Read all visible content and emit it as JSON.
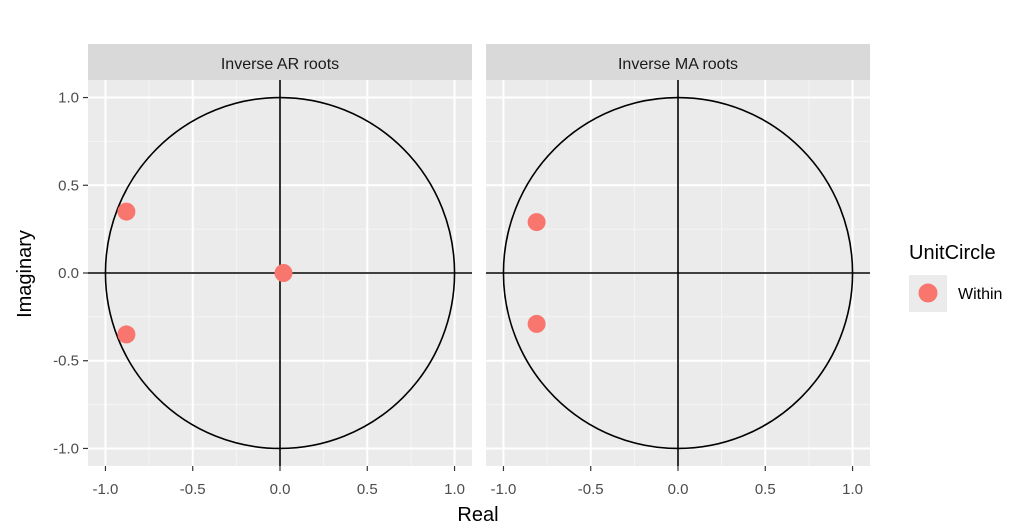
{
  "chart_data": {
    "type": "scatter",
    "xlabel": "Real",
    "ylabel": "Imaginary",
    "xlim": [
      -1.1,
      1.1
    ],
    "ylim": [
      -1.1,
      1.1
    ],
    "ticks": [
      -1.0,
      -0.5,
      0.0,
      0.5,
      1.0
    ],
    "tick_labels": [
      "-1.0",
      "-0.5",
      "0.0",
      "0.5",
      "1.0"
    ],
    "grid": true,
    "unit_circle": true,
    "legend": {
      "title": "UnitCircle",
      "position": "right",
      "entries": [
        {
          "label": "Within",
          "color": "#F8766D"
        }
      ]
    },
    "panels": [
      {
        "strip": "Inverse AR roots",
        "points": [
          {
            "x": -0.88,
            "y": 0.35
          },
          {
            "x": -0.88,
            "y": -0.35
          },
          {
            "x": 0.02,
            "y": 0.0
          }
        ]
      },
      {
        "strip": "Inverse MA roots",
        "points": [
          {
            "x": -0.81,
            "y": 0.29
          },
          {
            "x": -0.81,
            "y": -0.29
          }
        ]
      }
    ]
  }
}
